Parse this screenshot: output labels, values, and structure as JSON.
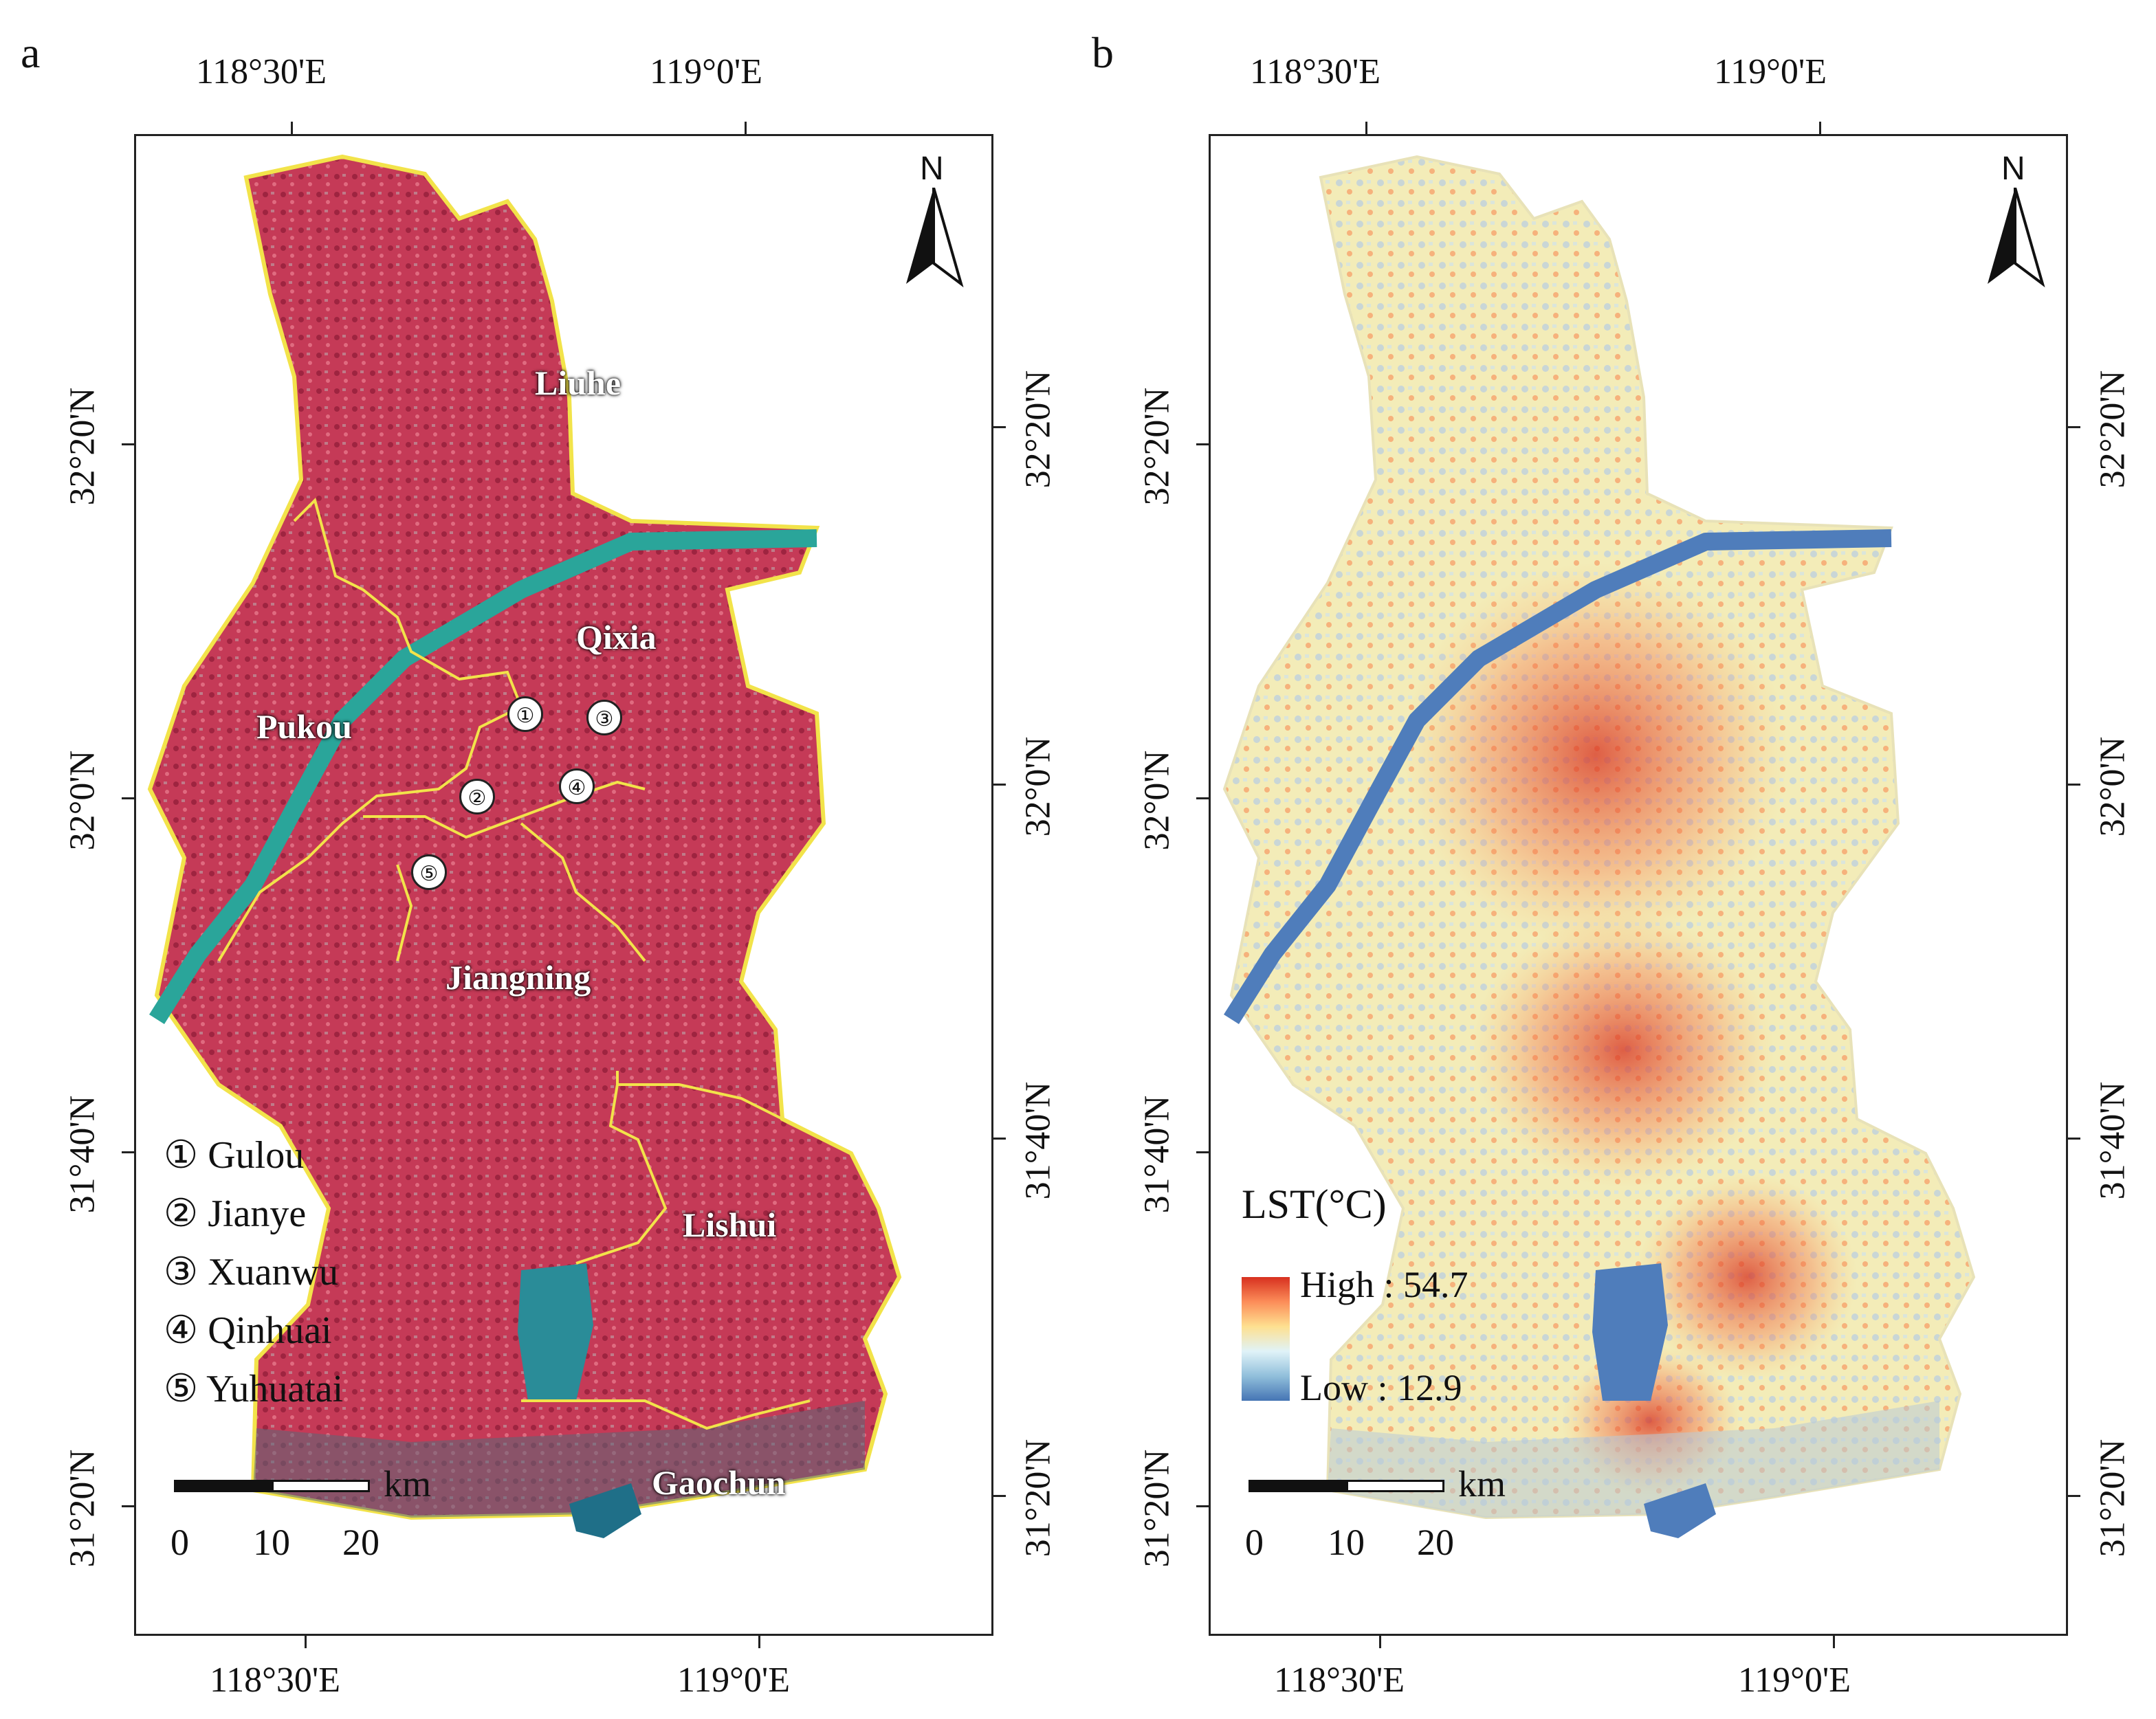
{
  "figure": {
    "panels": [
      {
        "label": "a",
        "top_lon": [
          "118°30'E",
          "119°0'E"
        ],
        "bottom_lon": [
          "118°30'E",
          "119°0'E"
        ],
        "left_lat": [
          "32°20'N",
          "32°0'N",
          "31°40'N",
          "31°20'N"
        ],
        "right_lat": [
          "32°20'N",
          "32°0'N",
          "31°40'N",
          "31°20'N"
        ],
        "north": "N",
        "districts": [
          "Liuhe",
          "Qixia",
          "Pukou",
          "Jiangning",
          "Lishui",
          "Gaochun"
        ],
        "district_numbers": [
          "①",
          "②",
          "③",
          "④",
          "⑤"
        ],
        "legend": [
          "① Gulou",
          "② Jianye",
          "③ Xuanwu",
          "④ Qinhuai",
          "⑤ Yuhuatai"
        ],
        "scale": {
          "unit": "km",
          "labels": [
            "0",
            "10",
            "20"
          ]
        }
      },
      {
        "label": "b",
        "top_lon": [
          "118°30'E",
          "119°0'E"
        ],
        "bottom_lon": [
          "118°30'E",
          "119°0'E"
        ],
        "left_lat": [
          "32°20'N",
          "32°0'N",
          "31°40'N",
          "31°20'N"
        ],
        "right_lat": [
          "32°20'N",
          "32°0'N",
          "31°40'N",
          "31°20'N"
        ],
        "north": "N",
        "lst": {
          "title": "LST(°C)",
          "high": "High : 54.7",
          "low": "Low : 12.9"
        },
        "scale": {
          "unit": "km",
          "labels": [
            "0",
            "10",
            "20"
          ]
        }
      }
    ],
    "colors": {
      "false_color_land": "#c23a55",
      "river_a": "#2aa59a",
      "boundary": "#f2e34a",
      "lst_high": "#d7301f",
      "lst_mid": "#fee8a8",
      "lst_low": "#4f7dbb"
    }
  }
}
